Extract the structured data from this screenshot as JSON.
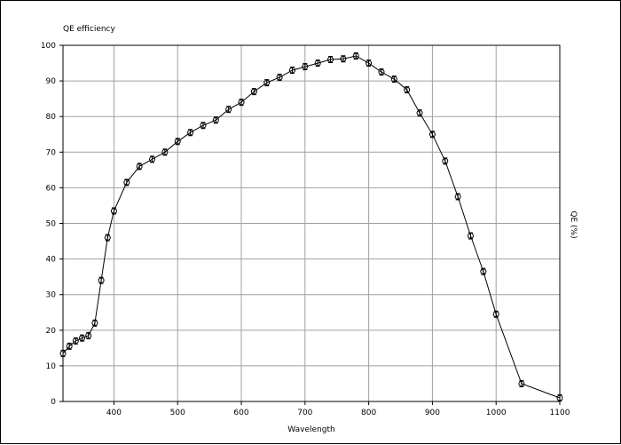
{
  "chart_data": {
    "type": "line",
    "title": "QE efficiency",
    "xlabel": "Wavelength",
    "ylabel": "QE (%)",
    "xlim": [
      320,
      1100
    ],
    "ylim": [
      0,
      100
    ],
    "x_ticks": [
      "400",
      "500",
      "600",
      "700",
      "800",
      "900",
      "1000",
      "1100"
    ],
    "y_ticks": [
      "0",
      "10",
      "20",
      "30",
      "40",
      "50",
      "60",
      "70",
      "80",
      "90",
      "100"
    ],
    "grid": true,
    "series": [
      {
        "x": [
          320,
          330,
          340,
          350,
          360,
          370,
          380,
          390,
          400,
          420,
          440,
          460,
          480,
          500,
          520,
          540,
          560,
          580,
          600,
          620,
          640,
          660,
          680,
          700,
          720,
          740,
          760,
          780,
          800,
          820,
          840,
          860,
          880,
          900,
          920,
          940,
          960,
          980,
          1000,
          1040,
          1100
        ],
        "y": [
          13.5,
          15.5,
          17,
          17.8,
          18.5,
          22,
          34,
          46,
          53.5,
          61.5,
          66,
          68,
          70,
          73,
          75.5,
          77.5,
          79,
          82,
          84,
          87,
          89.5,
          91,
          93,
          94,
          95,
          96,
          96.2,
          97,
          95,
          92.5,
          90.5,
          87.5,
          81,
          75,
          67.5,
          57.5,
          46.5,
          36.5,
          24.5,
          5,
          1
        ],
        "error_bars": true,
        "marker": "circle",
        "color": "#000000"
      }
    ]
  }
}
